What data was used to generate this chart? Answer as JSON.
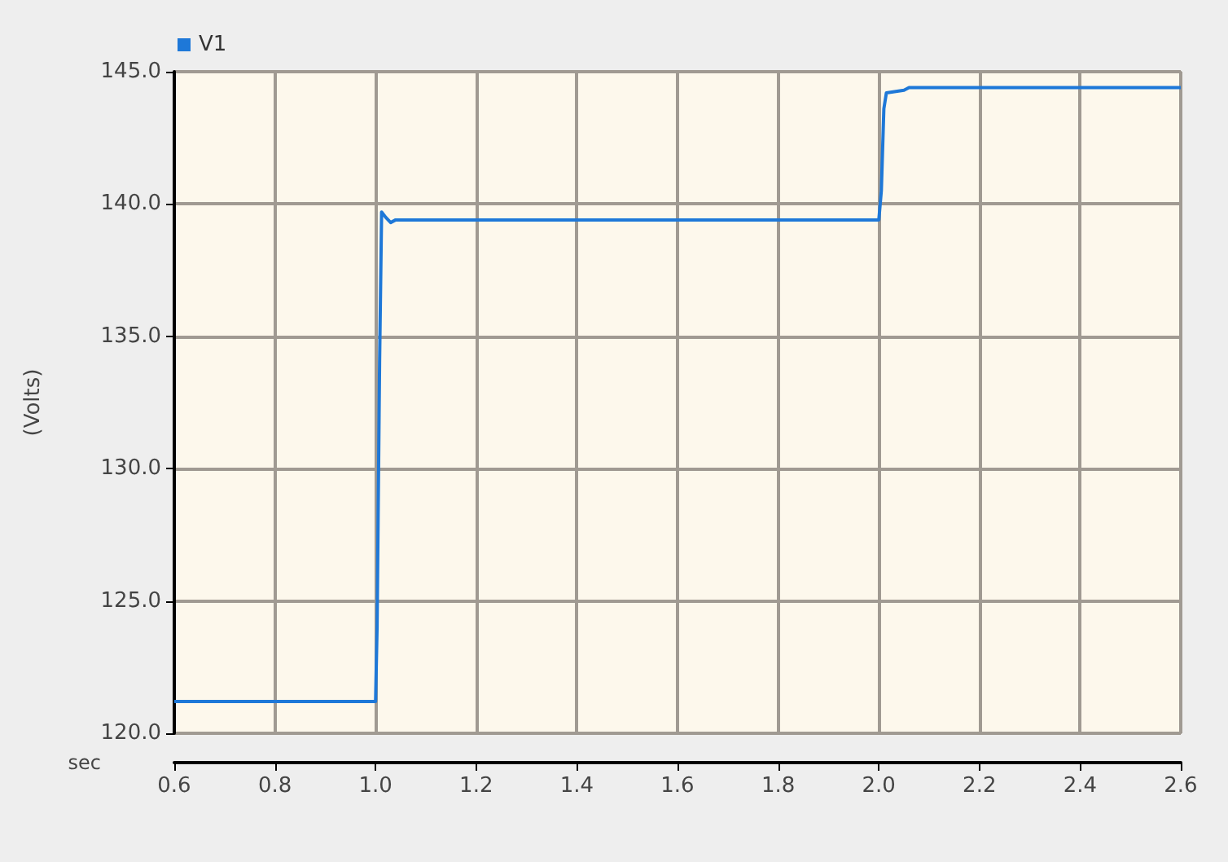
{
  "chart_data": {
    "type": "line",
    "xlabel": "sec",
    "ylabel": "(Volts)",
    "xlim": [
      0.6,
      2.6
    ],
    "xticks": [
      {
        "value": 0.6,
        "label": "0.6"
      },
      {
        "value": 0.8,
        "label": "0.8"
      },
      {
        "value": 1.0,
        "label": "1.0"
      },
      {
        "value": 1.2,
        "label": "1.2"
      },
      {
        "value": 1.4,
        "label": "1.4"
      },
      {
        "value": 1.6,
        "label": "1.6"
      },
      {
        "value": 1.8,
        "label": "1.8"
      },
      {
        "value": 2.0,
        "label": "2.0"
      },
      {
        "value": 2.2,
        "label": "2.2"
      },
      {
        "value": 2.4,
        "label": "2.4"
      },
      {
        "value": 2.6,
        "label": "2.6"
      }
    ],
    "ylim": [
      120,
      145
    ],
    "yticks": [
      {
        "value": 120,
        "label": "120.0"
      },
      {
        "value": 125,
        "label": "125.0"
      },
      {
        "value": 130,
        "label": "130.0"
      },
      {
        "value": 135,
        "label": "135.0"
      },
      {
        "value": 140,
        "label": "140.0"
      },
      {
        "value": 145,
        "label": "145.0"
      }
    ],
    "grid": true,
    "legend": "top left",
    "marker": "none",
    "line_style": "solid",
    "series": [
      {
        "name": "V1",
        "color": "#1e78d8",
        "x": [
          0.6,
          1.0,
          1.003,
          1.005,
          1.008,
          1.012,
          1.02,
          1.03,
          1.04,
          2.0,
          2.005,
          2.01,
          2.015,
          2.05,
          2.06,
          2.6
        ],
        "values": [
          121.2,
          121.2,
          124,
          128,
          134,
          139.7,
          139.5,
          139.3,
          139.4,
          139.4,
          140.5,
          143.6,
          144.2,
          144.3,
          144.4,
          144.4
        ]
      }
    ]
  }
}
